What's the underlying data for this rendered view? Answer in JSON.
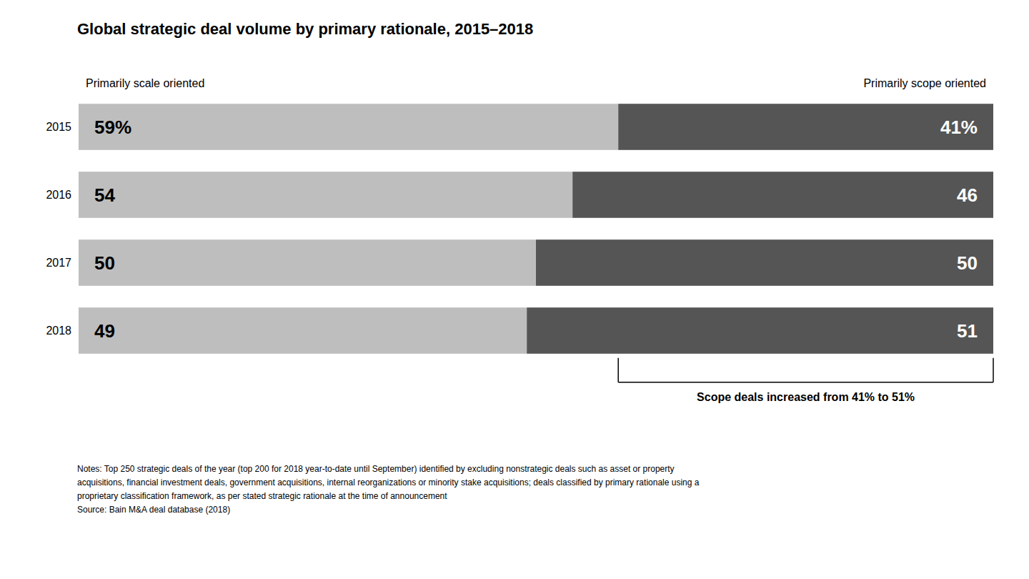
{
  "chart_data": {
    "type": "bar",
    "orientation": "horizontal",
    "stacked": true,
    "data_labels": true,
    "tick_labels": "y",
    "grid": false,
    "title": "Global strategic deal volume by primary rationale, 2015–2018",
    "categories": [
      "2015",
      "2016",
      "2017",
      "2018"
    ],
    "series": [
      {
        "name": "Primarily scale oriented",
        "color": "#bebebe",
        "values": [
          59,
          54,
          50,
          49
        ],
        "value_labels": [
          "59%",
          "54",
          "50",
          "49"
        ]
      },
      {
        "name": "Primarily scope oriented",
        "color": "#555555",
        "values": [
          41,
          46,
          50,
          51
        ],
        "value_labels": [
          "41%",
          "46",
          "50",
          "51"
        ]
      }
    ],
    "xlim": [
      0,
      100
    ],
    "annotation": "Scope deals increased from 41% to 51%",
    "notes": "Notes: Top 250 strategic deals of the year (top 200 for 2018 year-to-date until September) identified by excluding nonstrategic deals such as asset or property\nacquisitions, financial investment deals, government acquisitions, internal reorganizations or minority stake acquisitions; deals classified by primary rationale using a\nproprietary classification framework, as per stated strategic rationale at the time of announcement\nSource: Bain M&A deal database (2018)"
  }
}
